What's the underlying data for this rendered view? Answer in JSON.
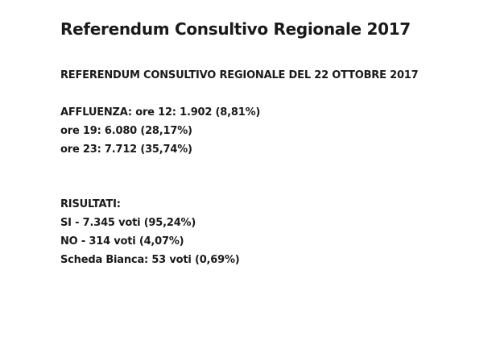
{
  "title": "Referendum Consultivo Regionale 2017",
  "subtitle": "REFERENDUM CONSULTIVO REGIONALE DEL 22 OTTOBRE 2017",
  "affluenza": [
    "AFFLUENZA: ore 12: 1.902 (8,81%)",
    "ore 19: 6.080 (28,17%)",
    "ore 23: 7.712 (35,74%)"
  ],
  "risultati": [
    "RISULTATI:",
    "SI - 7.345 voti (95,24%)",
    "NO - 314 voti (4,07%)",
    "Scheda Bianca: 53 voti (0,69%)"
  ]
}
